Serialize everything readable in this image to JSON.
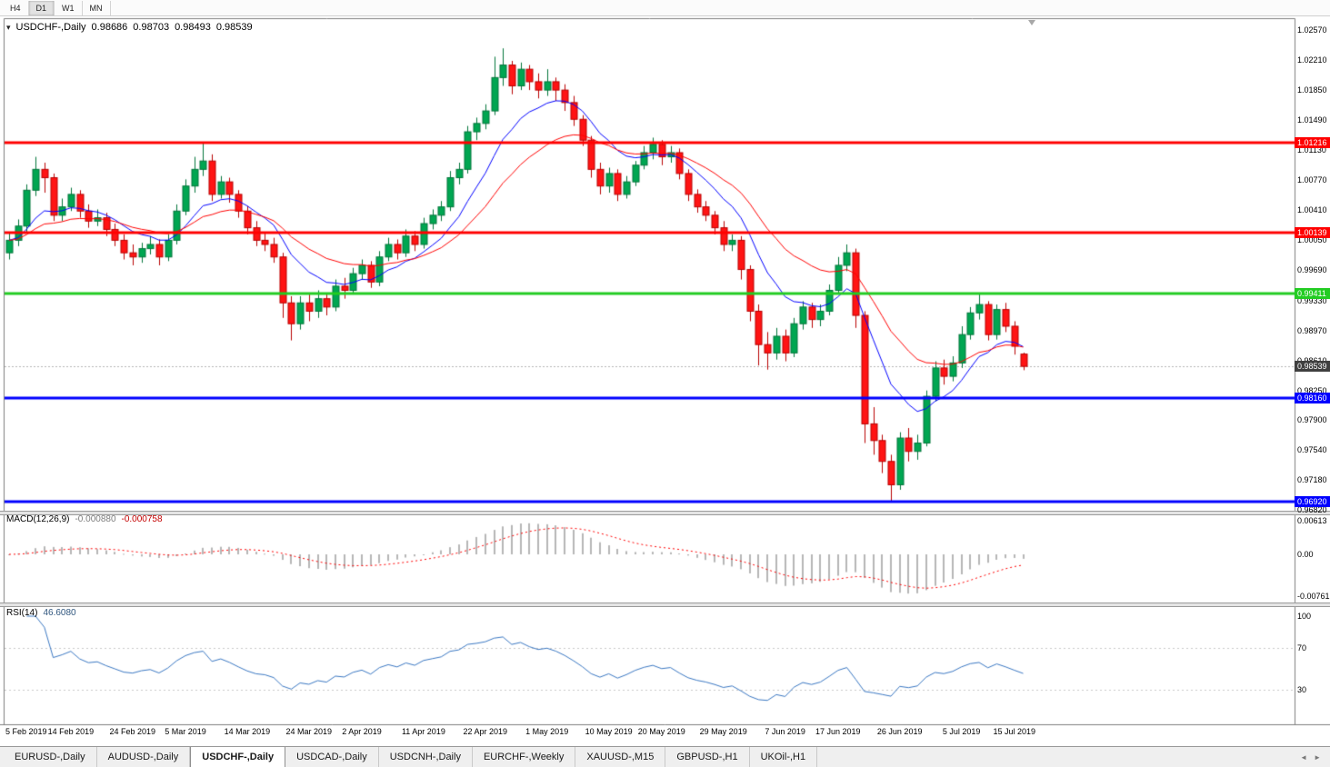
{
  "toolbar": {
    "timeframes": [
      "H4",
      "D1",
      "W1",
      "MN"
    ],
    "active_timeframe": "D1"
  },
  "chart": {
    "title": {
      "symbol": "USDCHF-,Daily",
      "open": "0.98686",
      "high": "0.98703",
      "low": "0.98493",
      "close": "0.98539"
    },
    "price_axis_labels": [
      "1.02570",
      "1.02210",
      "1.01850",
      "1.01490",
      "1.01130",
      "1.00770",
      "1.00410",
      "1.00050",
      "0.99690",
      "0.99330",
      "0.98970",
      "0.98610",
      "0.98250",
      "0.97900",
      "0.97540",
      "0.97180",
      "0.96820"
    ],
    "hlines": [
      {
        "price": 1.01216,
        "label": "1.01216",
        "color": "#ff0000",
        "kind": "resistance"
      },
      {
        "price": 1.00139,
        "label": "1.00139",
        "color": "#ff0000",
        "kind": "resistance"
      },
      {
        "price": 0.99411,
        "label": "0.99411",
        "color": "#22cc22",
        "kind": "pivot"
      },
      {
        "price": 0.9816,
        "label": "0.98160",
        "color": "#0000ff",
        "kind": "support"
      },
      {
        "price": 0.9692,
        "label": "0.96920",
        "color": "#0000ff",
        "kind": "support"
      }
    ],
    "current_price": {
      "price": 0.98539,
      "label": "0.98539",
      "badge_color": "#3f3f3f"
    },
    "ma_fast": {
      "type": "ema",
      "period": 10,
      "color": "#0000ff"
    },
    "ma_slow": {
      "type": "ema",
      "period": 21,
      "color": "#ff0000"
    },
    "candles": {
      "up_color": "#00a651",
      "up_border": "#00753a",
      "down_color": "#ff1414",
      "down_border": "#b80000",
      "data": [
        [
          0.999,
          1.0015,
          0.9982,
          1.0005
        ],
        [
          1.0005,
          1.003,
          0.9998,
          1.0022
        ],
        [
          1.0022,
          1.0072,
          1.0015,
          1.0065
        ],
        [
          1.0065,
          1.0105,
          1.0058,
          1.009
        ],
        [
          1.009,
          1.0098,
          1.0062,
          1.008
        ],
        [
          1.008,
          1.0085,
          1.0028,
          1.0035
        ],
        [
          1.0035,
          1.0055,
          1.0028,
          1.0045
        ],
        [
          1.0045,
          1.0068,
          1.004,
          1.006
        ],
        [
          1.006,
          1.0065,
          1.0032,
          1.004
        ],
        [
          1.004,
          1.0048,
          1.002,
          1.0028
        ],
        [
          1.0028,
          1.0042,
          1.0022,
          1.0032
        ],
        [
          1.0032,
          1.0038,
          1.001,
          1.0018
        ],
        [
          1.0018,
          1.0025,
          0.9998,
          1.0005
        ],
        [
          1.0005,
          1.0012,
          0.9982,
          0.999
        ],
        [
          0.999,
          1.0,
          0.9975,
          0.9985
        ],
        [
          0.9985,
          1.0002,
          0.9978,
          0.9995
        ],
        [
          0.9995,
          1.001,
          0.9988,
          1.0
        ],
        [
          1.0,
          1.0006,
          0.9975,
          0.9985
        ],
        [
          0.9985,
          1.0012,
          0.998,
          1.0005
        ],
        [
          1.0005,
          1.0048,
          1.0,
          1.004
        ],
        [
          1.004,
          1.0078,
          1.0035,
          1.007
        ],
        [
          1.007,
          1.0105,
          1.0062,
          1.009
        ],
        [
          1.009,
          1.0122,
          1.0082,
          1.01
        ],
        [
          1.01,
          1.0108,
          1.0052,
          1.006
        ],
        [
          1.006,
          1.0082,
          1.0055,
          1.0075
        ],
        [
          1.0075,
          1.008,
          1.005,
          1.006
        ],
        [
          1.006,
          1.0065,
          1.0032,
          1.004
        ],
        [
          1.004,
          1.0046,
          1.0012,
          1.002
        ],
        [
          1.002,
          1.0028,
          0.9998,
          1.0005
        ],
        [
          1.0005,
          1.0015,
          0.9992,
          1.0
        ],
        [
          1.0,
          1.0008,
          0.9978,
          0.9985
        ],
        [
          0.9985,
          0.999,
          0.9912,
          0.993
        ],
        [
          0.993,
          0.9938,
          0.9885,
          0.9905
        ],
        [
          0.9905,
          0.9938,
          0.9898,
          0.993
        ],
        [
          0.993,
          0.994,
          0.9908,
          0.992
        ],
        [
          0.992,
          0.9945,
          0.9912,
          0.9935
        ],
        [
          0.9935,
          0.9942,
          0.9915,
          0.9925
        ],
        [
          0.9925,
          0.9958,
          0.992,
          0.995
        ],
        [
          0.995,
          0.996,
          0.9935,
          0.9945
        ],
        [
          0.9945,
          0.9972,
          0.994,
          0.9965
        ],
        [
          0.9965,
          0.9982,
          0.9958,
          0.9975
        ],
        [
          0.9975,
          0.998,
          0.9948,
          0.9955
        ],
        [
          0.9955,
          0.9992,
          0.995,
          0.9985
        ],
        [
          0.9985,
          1.0008,
          0.998,
          1.0
        ],
        [
          1.0,
          1.0006,
          0.9982,
          0.999
        ],
        [
          0.999,
          1.0018,
          0.9985,
          1.001
        ],
        [
          1.001,
          1.0016,
          0.9992,
          1.0
        ],
        [
          1.0,
          1.0032,
          0.9995,
          1.0025
        ],
        [
          1.0025,
          1.0042,
          1.0018,
          1.0035
        ],
        [
          1.0035,
          1.0052,
          1.0028,
          1.0045
        ],
        [
          1.0045,
          1.0088,
          1.004,
          1.008
        ],
        [
          1.008,
          1.0098,
          1.0072,
          1.009
        ],
        [
          1.009,
          1.0142,
          1.0085,
          1.0135
        ],
        [
          1.0135,
          1.0152,
          1.0125,
          1.0145
        ],
        [
          1.0145,
          1.0168,
          1.0138,
          1.016
        ],
        [
          1.016,
          1.0225,
          1.0155,
          1.02
        ],
        [
          1.02,
          1.0235,
          1.019,
          1.0215
        ],
        [
          1.0215,
          1.022,
          1.018,
          1.019
        ],
        [
          1.019,
          1.0218,
          1.0185,
          1.021
        ],
        [
          1.021,
          1.0215,
          1.0185,
          1.0195
        ],
        [
          1.0195,
          1.0205,
          1.0175,
          1.0185
        ],
        [
          1.0185,
          1.021,
          1.0178,
          1.0195
        ],
        [
          1.0195,
          1.02,
          1.0172,
          1.0185
        ],
        [
          1.0185,
          1.0192,
          1.016,
          1.017
        ],
        [
          1.017,
          1.0178,
          1.0142,
          1.015
        ],
        [
          1.015,
          1.0155,
          1.0118,
          1.0125
        ],
        [
          1.0125,
          1.013,
          1.008,
          1.009
        ],
        [
          1.009,
          1.0098,
          1.006,
          1.007
        ],
        [
          1.007,
          1.0092,
          1.0062,
          1.0085
        ],
        [
          1.0085,
          1.009,
          1.0052,
          1.006
        ],
        [
          1.006,
          1.0082,
          1.0055,
          1.0075
        ],
        [
          1.0075,
          1.01,
          1.007,
          1.0095
        ],
        [
          1.0095,
          1.0118,
          1.009,
          1.011
        ],
        [
          1.011,
          1.0128,
          1.0102,
          1.012
        ],
        [
          1.012,
          1.0125,
          1.0095,
          1.0105
        ],
        [
          1.0105,
          1.0118,
          1.0098,
          1.011
        ],
        [
          1.011,
          1.0115,
          1.0078,
          1.0085
        ],
        [
          1.0085,
          1.009,
          1.0052,
          1.006
        ],
        [
          1.006,
          1.0066,
          1.0038,
          1.0045
        ],
        [
          1.0045,
          1.0052,
          1.0028,
          1.0035
        ],
        [
          1.0035,
          1.004,
          1.0012,
          1.002
        ],
        [
          1.002,
          1.0028,
          0.9992,
          1.0
        ],
        [
          1.0,
          1.0012,
          0.9992,
          1.0005
        ],
        [
          1.0005,
          1.001,
          0.9958,
          0.997
        ],
        [
          0.997,
          0.9975,
          0.9908,
          0.992
        ],
        [
          0.992,
          0.9928,
          0.9855,
          0.988
        ],
        [
          0.988,
          0.9895,
          0.985,
          0.987
        ],
        [
          0.987,
          0.99,
          0.9862,
          0.989
        ],
        [
          0.989,
          0.9898,
          0.986,
          0.987
        ],
        [
          0.987,
          0.9912,
          0.9865,
          0.9905
        ],
        [
          0.9905,
          0.9932,
          0.9898,
          0.9925
        ],
        [
          0.9925,
          0.993,
          0.99,
          0.991
        ],
        [
          0.991,
          0.9928,
          0.9902,
          0.992
        ],
        [
          0.992,
          0.9952,
          0.9915,
          0.9945
        ],
        [
          0.9945,
          0.9985,
          0.994,
          0.9975
        ],
        [
          0.9975,
          1.0,
          0.9968,
          0.999
        ],
        [
          0.999,
          0.9995,
          0.99,
          0.9915
        ],
        [
          0.9915,
          0.992,
          0.9762,
          0.9785
        ],
        [
          0.9785,
          0.9805,
          0.9748,
          0.9765
        ],
        [
          0.9765,
          0.9772,
          0.9726,
          0.974
        ],
        [
          0.974,
          0.9748,
          0.9692,
          0.9712
        ],
        [
          0.9712,
          0.9775,
          0.9706,
          0.9768
        ],
        [
          0.9768,
          0.978,
          0.974,
          0.9752
        ],
        [
          0.9752,
          0.9772,
          0.9742,
          0.9762
        ],
        [
          0.9762,
          0.9825,
          0.9758,
          0.9818
        ],
        [
          0.9818,
          0.986,
          0.9812,
          0.9852
        ],
        [
          0.9852,
          0.9862,
          0.9832,
          0.9842
        ],
        [
          0.9842,
          0.9866,
          0.9836,
          0.9858
        ],
        [
          0.9858,
          0.9902,
          0.9852,
          0.9892
        ],
        [
          0.9892,
          0.9925,
          0.9886,
          0.9918
        ],
        [
          0.9918,
          0.9942,
          0.991,
          0.9928
        ],
        [
          0.9928,
          0.9932,
          0.9885,
          0.9892
        ],
        [
          0.9892,
          0.9928,
          0.9886,
          0.9922
        ],
        [
          0.9922,
          0.993,
          0.9895,
          0.9902
        ],
        [
          0.9902,
          0.9908,
          0.9868,
          0.9878
        ],
        [
          0.98686,
          0.98703,
          0.98493,
          0.98539
        ]
      ]
    },
    "date_labels": [
      {
        "i": 0,
        "text": "5 Feb 2019"
      },
      {
        "i": 7,
        "text": "14 Feb 2019"
      },
      {
        "i": 14,
        "text": "24 Feb 2019"
      },
      {
        "i": 20,
        "text": "5 Mar 2019"
      },
      {
        "i": 27,
        "text": "14 Mar 2019"
      },
      {
        "i": 34,
        "text": "24 Mar 2019"
      },
      {
        "i": 40,
        "text": "2 Apr 2019"
      },
      {
        "i": 47,
        "text": "11 Apr 2019"
      },
      {
        "i": 54,
        "text": "22 Apr 2019"
      },
      {
        "i": 61,
        "text": "1 May 2019"
      },
      {
        "i": 68,
        "text": "10 May 2019"
      },
      {
        "i": 74,
        "text": "20 May 2019"
      },
      {
        "i": 81,
        "text": "29 May 2019"
      },
      {
        "i": 88,
        "text": "7 Jun 2019"
      },
      {
        "i": 94,
        "text": "17 Jun 2019"
      },
      {
        "i": 101,
        "text": "26 Jun 2019"
      },
      {
        "i": 108,
        "text": "5 Jul 2019"
      },
      {
        "i": 114,
        "text": "15 Jul 2019"
      }
    ]
  },
  "macd": {
    "title": "MACD(12,26,9)",
    "value_main": "-0.000880",
    "value_signal": "-0.000758",
    "axis_labels": [
      "0.00613",
      "0.00",
      "-0.00761"
    ],
    "fast": 12,
    "slow": 26,
    "signal": 9,
    "hist_color": "#b6b6b6",
    "signal_color": "#ff0000"
  },
  "rsi": {
    "title": "RSI(14)",
    "value": "46.6080",
    "period": 14,
    "axis_labels": [
      "100",
      "70",
      "30"
    ],
    "levels": [
      70,
      30
    ],
    "color": "#3a77c2"
  },
  "tabs": {
    "items": [
      "EURUSD-,Daily",
      "AUDUSD-,Daily",
      "USDCHF-,Daily",
      "USDCAD-,Daily",
      "USDCNH-,Daily",
      "EURCHF-,Weekly",
      "XAUUSD-,M15",
      "GBPUSD-,H1",
      "UKOil-,H1"
    ],
    "active_index": 2
  }
}
